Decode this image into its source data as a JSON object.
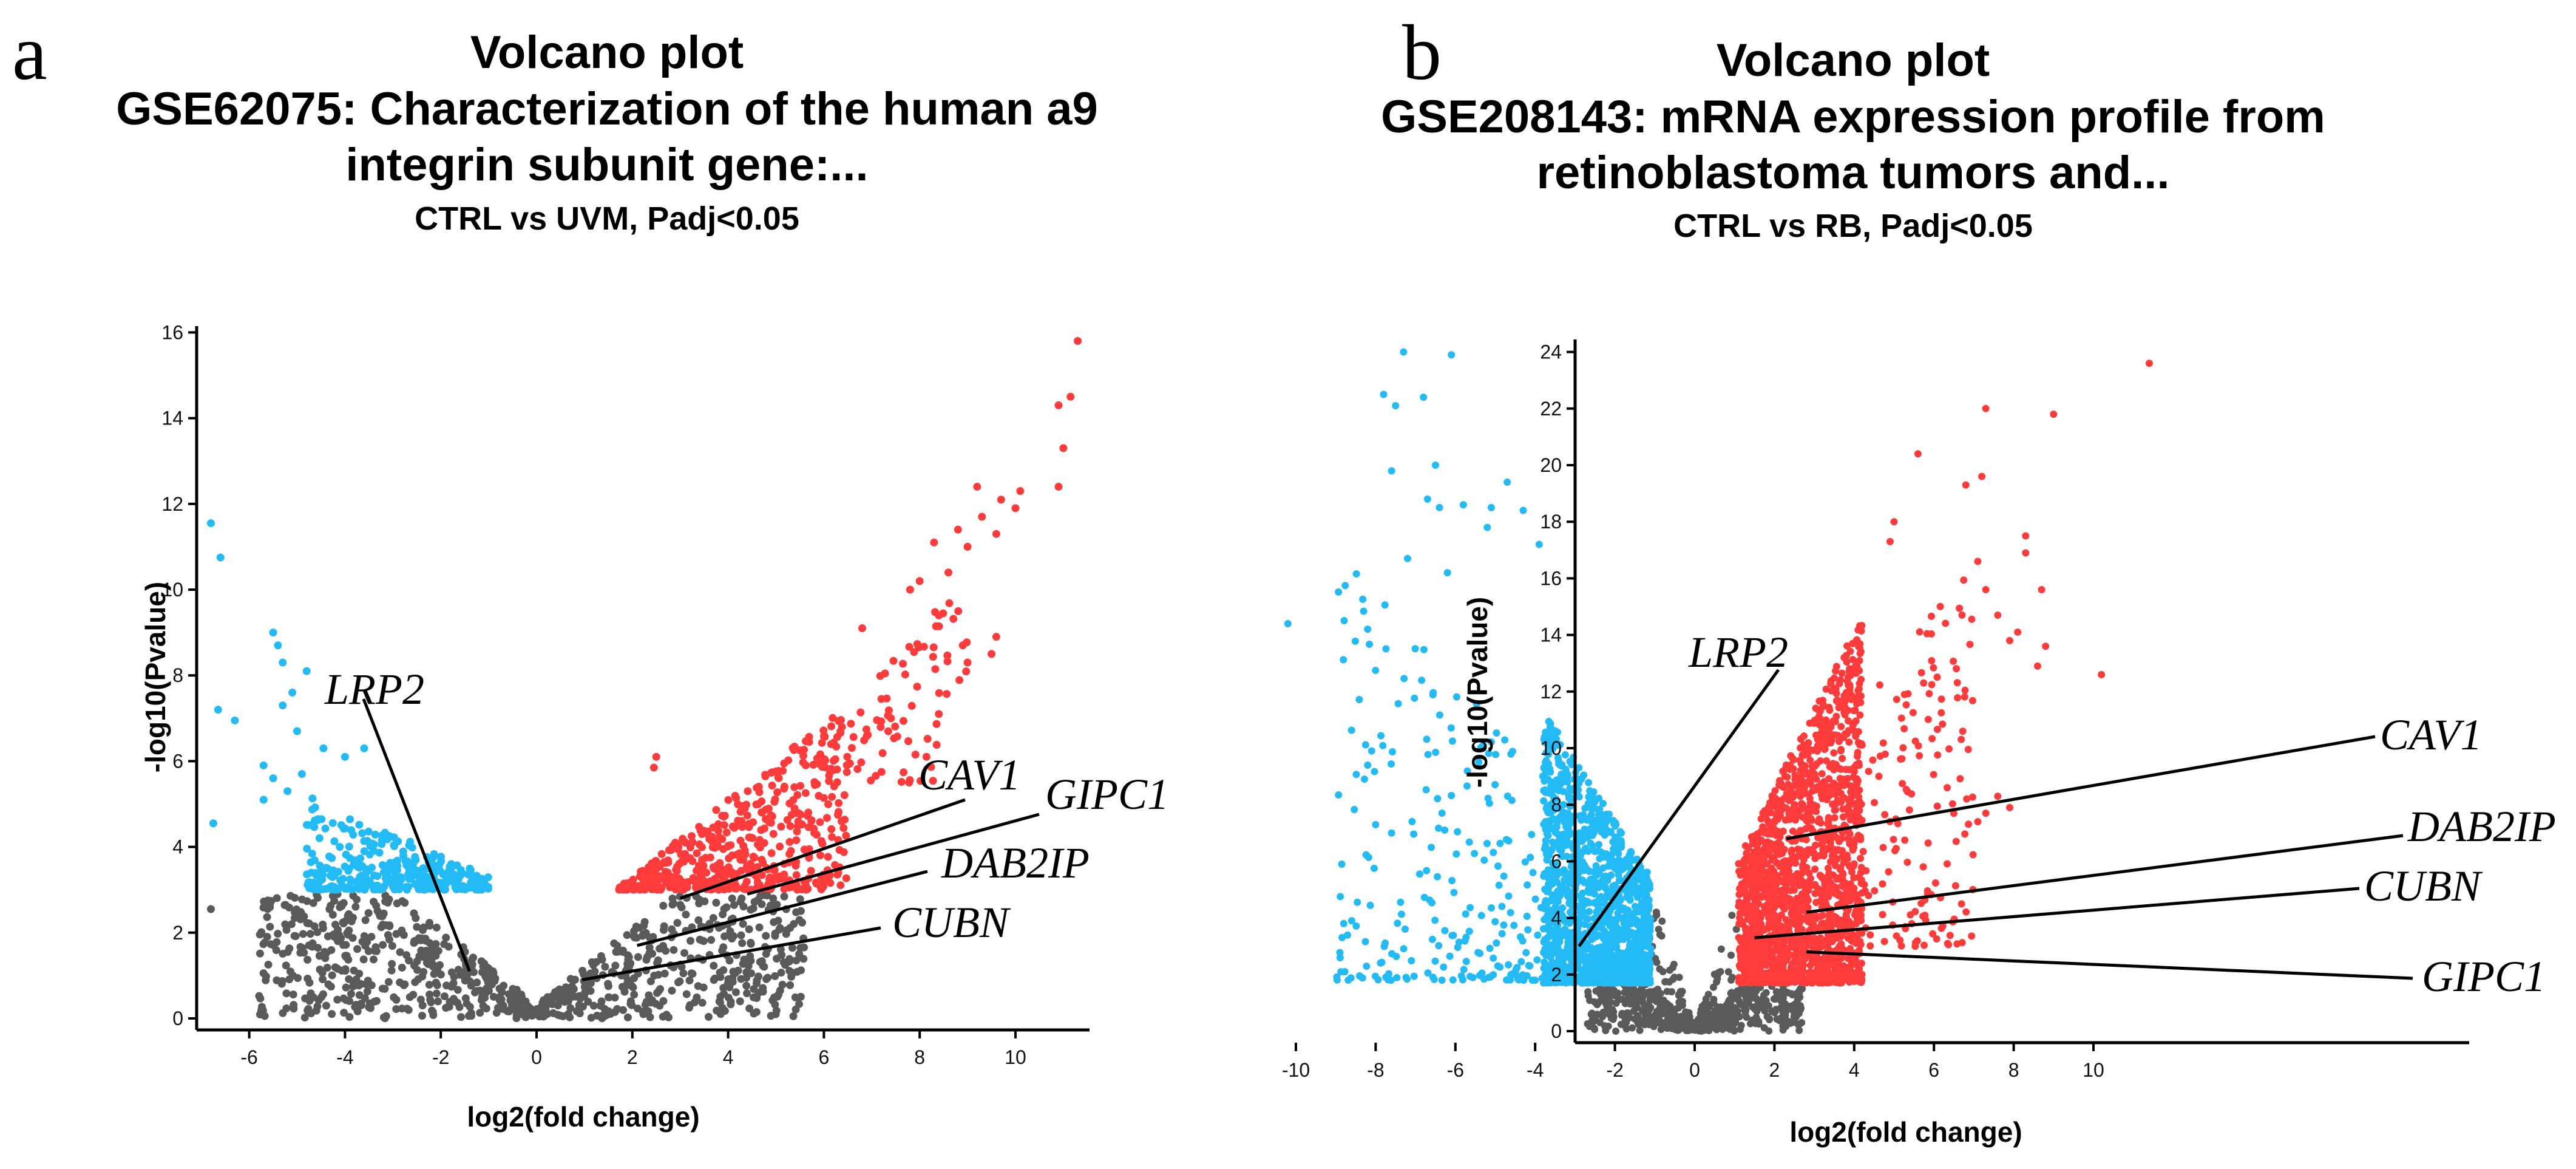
{
  "chart_data": [
    {
      "type": "scatter",
      "panel_label": "a",
      "title": "Volcano plot",
      "subtitle": [
        "GSE62075: Characterization of the human a9",
        "integrin subunit gene:..."
      ],
      "comparison": "CTRL vs UVM, Padj<0.05",
      "xlabel": "log2(fold change)",
      "ylabel": "-log10(Pvalue)",
      "xlim": [
        -7.1,
        11.5
      ],
      "ylim": [
        0,
        16.2
      ],
      "xticks": [
        -6,
        -4,
        -2,
        0,
        2,
        4,
        6,
        8,
        10
      ],
      "yticks": [
        0,
        2,
        4,
        6,
        8,
        10,
        12,
        14,
        16
      ],
      "colors": {
        "down": "#22BBF5",
        "up": "#FF3B3B",
        "ns": "#5A5A5A"
      },
      "highlighted_points": {
        "down": [
          [
            -6.8,
            11.55
          ],
          [
            -6.6,
            10.75
          ],
          [
            -6.65,
            7.2
          ],
          [
            -6.3,
            6.95
          ],
          [
            -5.5,
            9.0
          ],
          [
            -5.4,
            8.7
          ],
          [
            -5.3,
            8.3
          ],
          [
            -4.8,
            8.1
          ],
          [
            -5.1,
            7.6
          ],
          [
            -5.3,
            7.3
          ],
          [
            -5.0,
            6.7
          ],
          [
            -5.7,
            5.9
          ],
          [
            -5.5,
            5.6
          ],
          [
            -5.7,
            5.1
          ],
          [
            -6.75,
            4.55
          ],
          [
            -5.2,
            5.3
          ],
          [
            -4.9,
            5.7
          ],
          [
            -4.45,
            6.3
          ],
          [
            -3.6,
            6.3
          ],
          [
            -4.0,
            6.1
          ]
        ],
        "up": [
          [
            11.3,
            15.8
          ],
          [
            11.15,
            14.5
          ],
          [
            10.9,
            14.3
          ],
          [
            11.0,
            13.3
          ],
          [
            10.9,
            12.4
          ],
          [
            9.2,
            12.4
          ],
          [
            10.1,
            12.3
          ],
          [
            9.7,
            12.1
          ],
          [
            10.0,
            11.9
          ],
          [
            9.3,
            11.7
          ],
          [
            8.3,
            11.1
          ],
          [
            8.8,
            11.4
          ],
          [
            9.0,
            11.0
          ],
          [
            9.6,
            11.3
          ],
          [
            8.6,
            10.4
          ],
          [
            8.0,
            10.2
          ],
          [
            7.8,
            10.0
          ],
          [
            8.4,
            9.4
          ],
          [
            9.6,
            8.9
          ],
          [
            9.5,
            8.5
          ],
          [
            8.9,
            8.7
          ],
          [
            9.0,
            8.3
          ],
          [
            8.4,
            7.1
          ],
          [
            7.4,
            7.0
          ],
          [
            2.5,
            6.1
          ],
          [
            2.45,
            5.85
          ],
          [
            6.8,
            9.1
          ]
        ],
        "ns": [
          [
            -6.8,
            2.55
          ]
        ]
      },
      "point_clouds": [
        {
          "group": "ns",
          "n": 900,
          "x": [
            -5.8,
            5.6
          ],
          "y_min": 0,
          "top_base": 0.3,
          "top_slope": 0.9,
          "y_cap": 2.9,
          "power": 0.9,
          "seed": 11
        },
        {
          "group": "down",
          "n": 350,
          "x": [
            -4.8,
            -1.0
          ],
          "y_min": 3.0,
          "top_base": 2.8,
          "top_slope": 0.5,
          "y_cap": 6,
          "power": 1.8,
          "seed": 12
        },
        {
          "group": "up",
          "n": 550,
          "x": [
            1.7,
            6.5
          ],
          "y_min": 3.0,
          "top_base": 1.5,
          "top_slope": 0.9,
          "y_cap": 9,
          "power": 1.5,
          "seed": 13
        },
        {
          "group": "up",
          "n": 80,
          "x": [
            6.0,
            9.0
          ],
          "y_min": 5.5,
          "top_base": -0.5,
          "top_slope": 1.2,
          "y_cap": 11,
          "power": 1.0,
          "seed": 14
        }
      ],
      "annotations": [
        {
          "gene": "LRP2",
          "point": [
            -1.4,
            1.1
          ]
        },
        {
          "gene": "CAV1",
          "point": [
            3.0,
            2.8
          ]
        },
        {
          "gene": "GIPC1",
          "point": [
            4.4,
            2.9
          ]
        },
        {
          "gene": "DAB2IP",
          "point": [
            2.1,
            1.7
          ]
        },
        {
          "gene": "CUBN",
          "point": [
            0.95,
            0.9
          ]
        }
      ]
    },
    {
      "type": "scatter",
      "panel_label": "b",
      "title": "Volcano plot",
      "subtitle": [
        "GSE208143: mRNA expression profile from",
        "retinoblastoma tumors and..."
      ],
      "comparison": "CTRL vs RB, Padj<0.05",
      "xlabel": "log2(fold change)",
      "ylabel": "-log10(Pvalue)",
      "xlim": [
        -10.6,
        12.0
      ],
      "ylim": [
        -0.4,
        24.5
      ],
      "xticks": [
        -10,
        -8,
        -6,
        -4,
        -2,
        0,
        2,
        4,
        6,
        8,
        10
      ],
      "yticks": [
        0,
        2,
        4,
        6,
        8,
        10,
        12,
        14,
        16,
        18,
        20,
        22,
        24
      ],
      "colors": {
        "down": "#22BBF5",
        "up": "#FF3B3B",
        "ns": "#5A5A5A"
      },
      "highlighted_points": {
        "down": [
          [
            -10.2,
            14.4
          ],
          [
            -7.3,
            24.0
          ],
          [
            -6.1,
            23.9
          ],
          [
            -7.8,
            22.5
          ],
          [
            -6.8,
            22.4
          ],
          [
            -7.5,
            22.1
          ],
          [
            -7.6,
            19.8
          ],
          [
            -6.5,
            20.0
          ],
          [
            -4.7,
            19.4
          ],
          [
            -6.7,
            18.8
          ],
          [
            -6.4,
            18.5
          ],
          [
            -5.8,
            18.6
          ],
          [
            -5.1,
            18.5
          ],
          [
            -4.3,
            18.4
          ],
          [
            -7.2,
            16.7
          ],
          [
            -6.2,
            16.2
          ],
          [
            -3.9,
            17.2
          ],
          [
            -5.2,
            17.8
          ],
          [
            -8.1,
            9.9
          ],
          [
            -8.2,
            9.4
          ],
          [
            -8.0,
            7.3
          ],
          [
            -7.6,
            7.0
          ],
          [
            -8.8,
            3.8
          ],
          [
            -8.6,
            3.9
          ]
        ],
        "up": [
          [
            11.4,
            23.6
          ],
          [
            7.3,
            22.0
          ],
          [
            9.0,
            21.8
          ],
          [
            5.6,
            20.4
          ],
          [
            7.2,
            19.6
          ],
          [
            6.8,
            19.3
          ],
          [
            8.3,
            17.5
          ],
          [
            8.3,
            16.9
          ],
          [
            7.1,
            16.6
          ],
          [
            7.3,
            15.6
          ],
          [
            8.7,
            15.6
          ],
          [
            7.6,
            14.7
          ],
          [
            8.1,
            14.1
          ],
          [
            7.9,
            13.8
          ],
          [
            8.8,
            13.6
          ],
          [
            8.6,
            12.9
          ],
          [
            10.2,
            12.6
          ],
          [
            7.6,
            8.3
          ],
          [
            7.9,
            7.9
          ],
          [
            7.3,
            7.7
          ],
          [
            7.1,
            7.4
          ],
          [
            5.0,
            18.0
          ],
          [
            4.9,
            17.3
          ]
        ],
        "ns": []
      },
      "point_clouds": [
        {
          "group": "ns",
          "n": 500,
          "x": [
            -2.7,
            2.7
          ],
          "y_min": 0,
          "top_base": 0.1,
          "top_slope": 1.3,
          "y_cap": 1.7,
          "power": 0.9,
          "seed": 21
        },
        {
          "group": "ns",
          "n": 120,
          "x": [
            -1.15,
            1.15
          ],
          "y_min": 0.3,
          "top_base": 0,
          "top_slope": 5,
          "y_cap": 6,
          "power": 1.2,
          "seed": 22
        },
        {
          "group": "down",
          "n": 1400,
          "x": [
            -3.8,
            -1.1
          ],
          "y_min": 1.7,
          "top_base": 3,
          "top_slope": 2.2,
          "y_cap": 12,
          "power": 1.6,
          "seed": 23
        },
        {
          "group": "down",
          "n": 250,
          "x": [
            -9.0,
            -3.0
          ],
          "y_min": 1.8,
          "top_base": 6,
          "top_slope": 1.2,
          "y_cap": 17,
          "power": 2.0,
          "seed": 24
        },
        {
          "group": "up",
          "n": 1800,
          "x": [
            1.1,
            4.2
          ],
          "y_min": 1.7,
          "top_base": 3,
          "top_slope": 2.8,
          "y_cap": 15,
          "power": 1.5,
          "seed": 25
        },
        {
          "group": "up",
          "n": 150,
          "x": [
            4.0,
            7.0
          ],
          "y_min": 3,
          "top_base": 6,
          "top_slope": 1.5,
          "y_cap": 16.5,
          "power": 1.5,
          "seed": 26
        }
      ],
      "annotations": [
        {
          "gene": "LRP2",
          "point": [
            -2.9,
            3.0
          ]
        },
        {
          "gene": "CAV1",
          "point": [
            2.3,
            6.8
          ]
        },
        {
          "gene": "DAB2IP",
          "point": [
            2.8,
            4.2
          ]
        },
        {
          "gene": "CUBN",
          "point": [
            1.5,
            3.3
          ]
        },
        {
          "gene": "GIPC1",
          "point": [
            2.8,
            2.8
          ]
        }
      ]
    }
  ]
}
